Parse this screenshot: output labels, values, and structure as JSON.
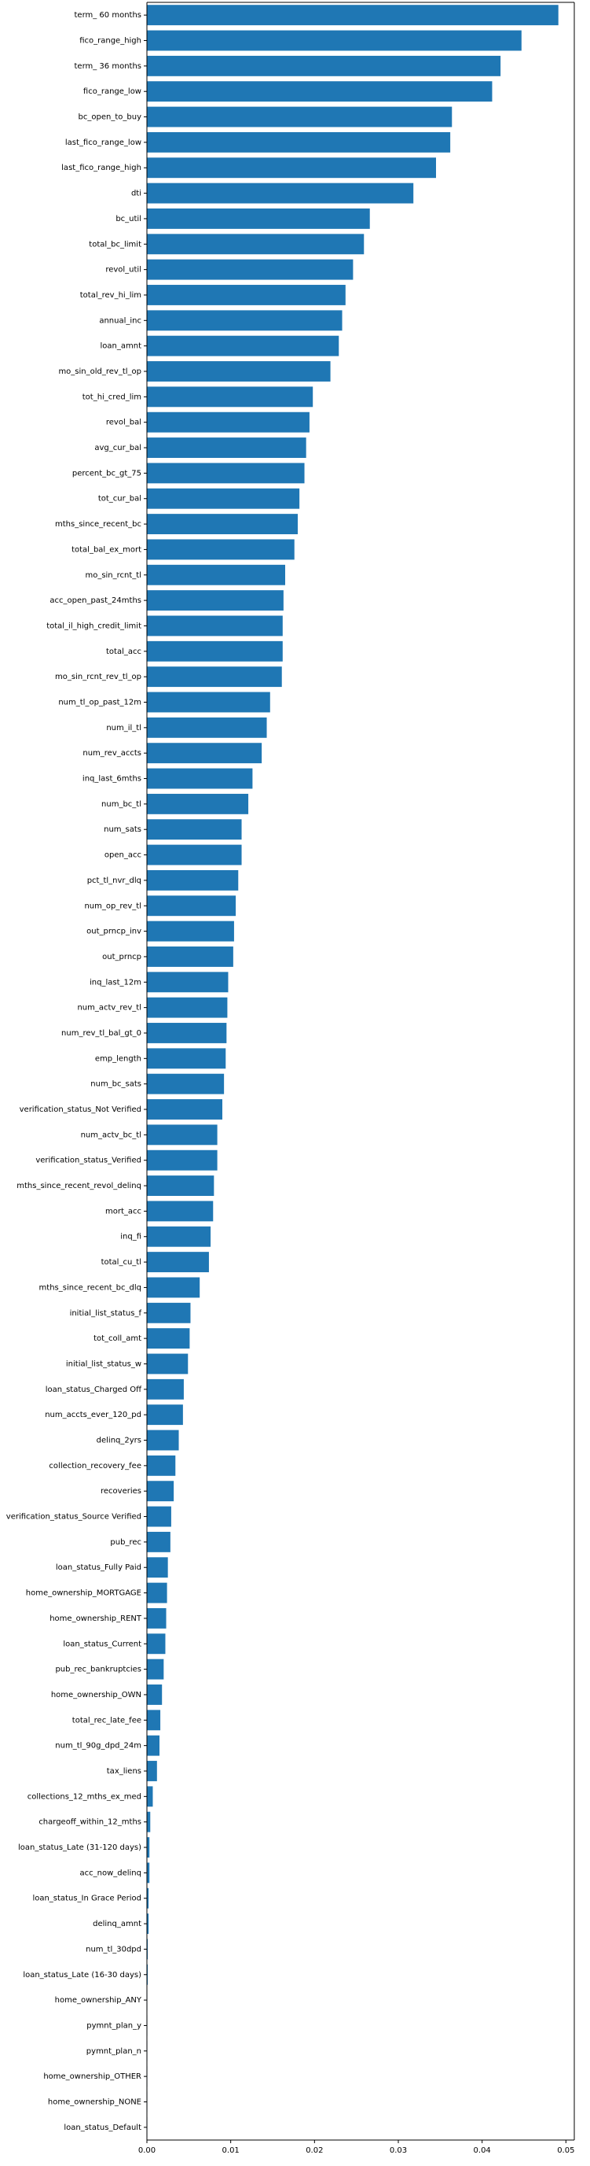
{
  "chart_data": {
    "type": "bar",
    "orientation": "horizontal",
    "title": "",
    "xlabel": "",
    "ylabel": "",
    "xlim": [
      0,
      0.051
    ],
    "xticks": [
      "0.00",
      "0.01",
      "0.02",
      "0.03",
      "0.04",
      "0.05"
    ],
    "bar_color": "#1f77b4",
    "grid": false,
    "categories": [
      "term_ 60 months",
      "fico_range_high",
      "term_ 36 months",
      "fico_range_low",
      "bc_open_to_buy",
      "last_fico_range_low",
      "last_fico_range_high",
      "dti",
      "bc_util",
      "total_bc_limit",
      "revol_util",
      "total_rev_hi_lim",
      "annual_inc",
      "loan_amnt",
      "mo_sin_old_rev_tl_op",
      "tot_hi_cred_lim",
      "revol_bal",
      "avg_cur_bal",
      "percent_bc_gt_75",
      "tot_cur_bal",
      "mths_since_recent_bc",
      "total_bal_ex_mort",
      "mo_sin_rcnt_tl",
      "acc_open_past_24mths",
      "total_il_high_credit_limit",
      "total_acc",
      "mo_sin_rcnt_rev_tl_op",
      "num_tl_op_past_12m",
      "num_il_tl",
      "num_rev_accts",
      "inq_last_6mths",
      "num_bc_tl",
      "num_sats",
      "open_acc",
      "pct_tl_nvr_dlq",
      "num_op_rev_tl",
      "out_prncp_inv",
      "out_prncp",
      "inq_last_12m",
      "num_actv_rev_tl",
      "num_rev_tl_bal_gt_0",
      "emp_length",
      "num_bc_sats",
      "verification_status_Not Verified",
      "num_actv_bc_tl",
      "verification_status_Verified",
      "mths_since_recent_revol_delinq",
      "mort_acc",
      "inq_fi",
      "total_cu_tl",
      "mths_since_recent_bc_dlq",
      "initial_list_status_f",
      "tot_coll_amt",
      "initial_list_status_w",
      "loan_status_Charged Off",
      "num_accts_ever_120_pd",
      "delinq_2yrs",
      "collection_recovery_fee",
      "recoveries",
      "verification_status_Source Verified",
      "pub_rec",
      "loan_status_Fully Paid",
      "home_ownership_MORTGAGE",
      "home_ownership_RENT",
      "loan_status_Current",
      "pub_rec_bankruptcies",
      "home_ownership_OWN",
      "total_rec_late_fee",
      "num_tl_90g_dpd_24m",
      "tax_liens",
      "collections_12_mths_ex_med",
      "chargeoff_within_12_mths",
      "loan_status_Late (31-120 days)",
      "acc_now_delinq",
      "loan_status_In Grace Period",
      "delinq_amnt",
      "num_tl_30dpd",
      "loan_status_Late (16-30 days)",
      "home_ownership_ANY",
      "pymnt_plan_y",
      "pymnt_plan_n",
      "home_ownership_OTHER",
      "home_ownership_NONE",
      "loan_status_Default"
    ],
    "values": [
      0.0491,
      0.0447,
      0.0422,
      0.0412,
      0.0364,
      0.0362,
      0.0345,
      0.0318,
      0.0266,
      0.0259,
      0.0246,
      0.0237,
      0.0233,
      0.0229,
      0.0219,
      0.0198,
      0.0194,
      0.019,
      0.0188,
      0.0182,
      0.018,
      0.0176,
      0.0165,
      0.0163,
      0.0162,
      0.0162,
      0.0161,
      0.0147,
      0.0143,
      0.0137,
      0.0126,
      0.0121,
      0.0113,
      0.0113,
      0.0109,
      0.0106,
      0.0104,
      0.0103,
      0.0097,
      0.0096,
      0.0095,
      0.0094,
      0.0092,
      0.009,
      0.0084,
      0.0084,
      0.008,
      0.0079,
      0.0076,
      0.0074,
      0.0063,
      0.0052,
      0.0051,
      0.0049,
      0.0044,
      0.0043,
      0.0038,
      0.0034,
      0.0032,
      0.0029,
      0.0028,
      0.0025,
      0.0024,
      0.0023,
      0.0022,
      0.002,
      0.0018,
      0.0016,
      0.0015,
      0.0012,
      0.0007,
      0.0004,
      0.0003,
      0.0003,
      0.0002,
      0.0002,
      0.0001,
      0.0001,
      5e-05,
      5e-05,
      5e-05,
      5e-05,
      5e-05,
      5e-05
    ]
  }
}
